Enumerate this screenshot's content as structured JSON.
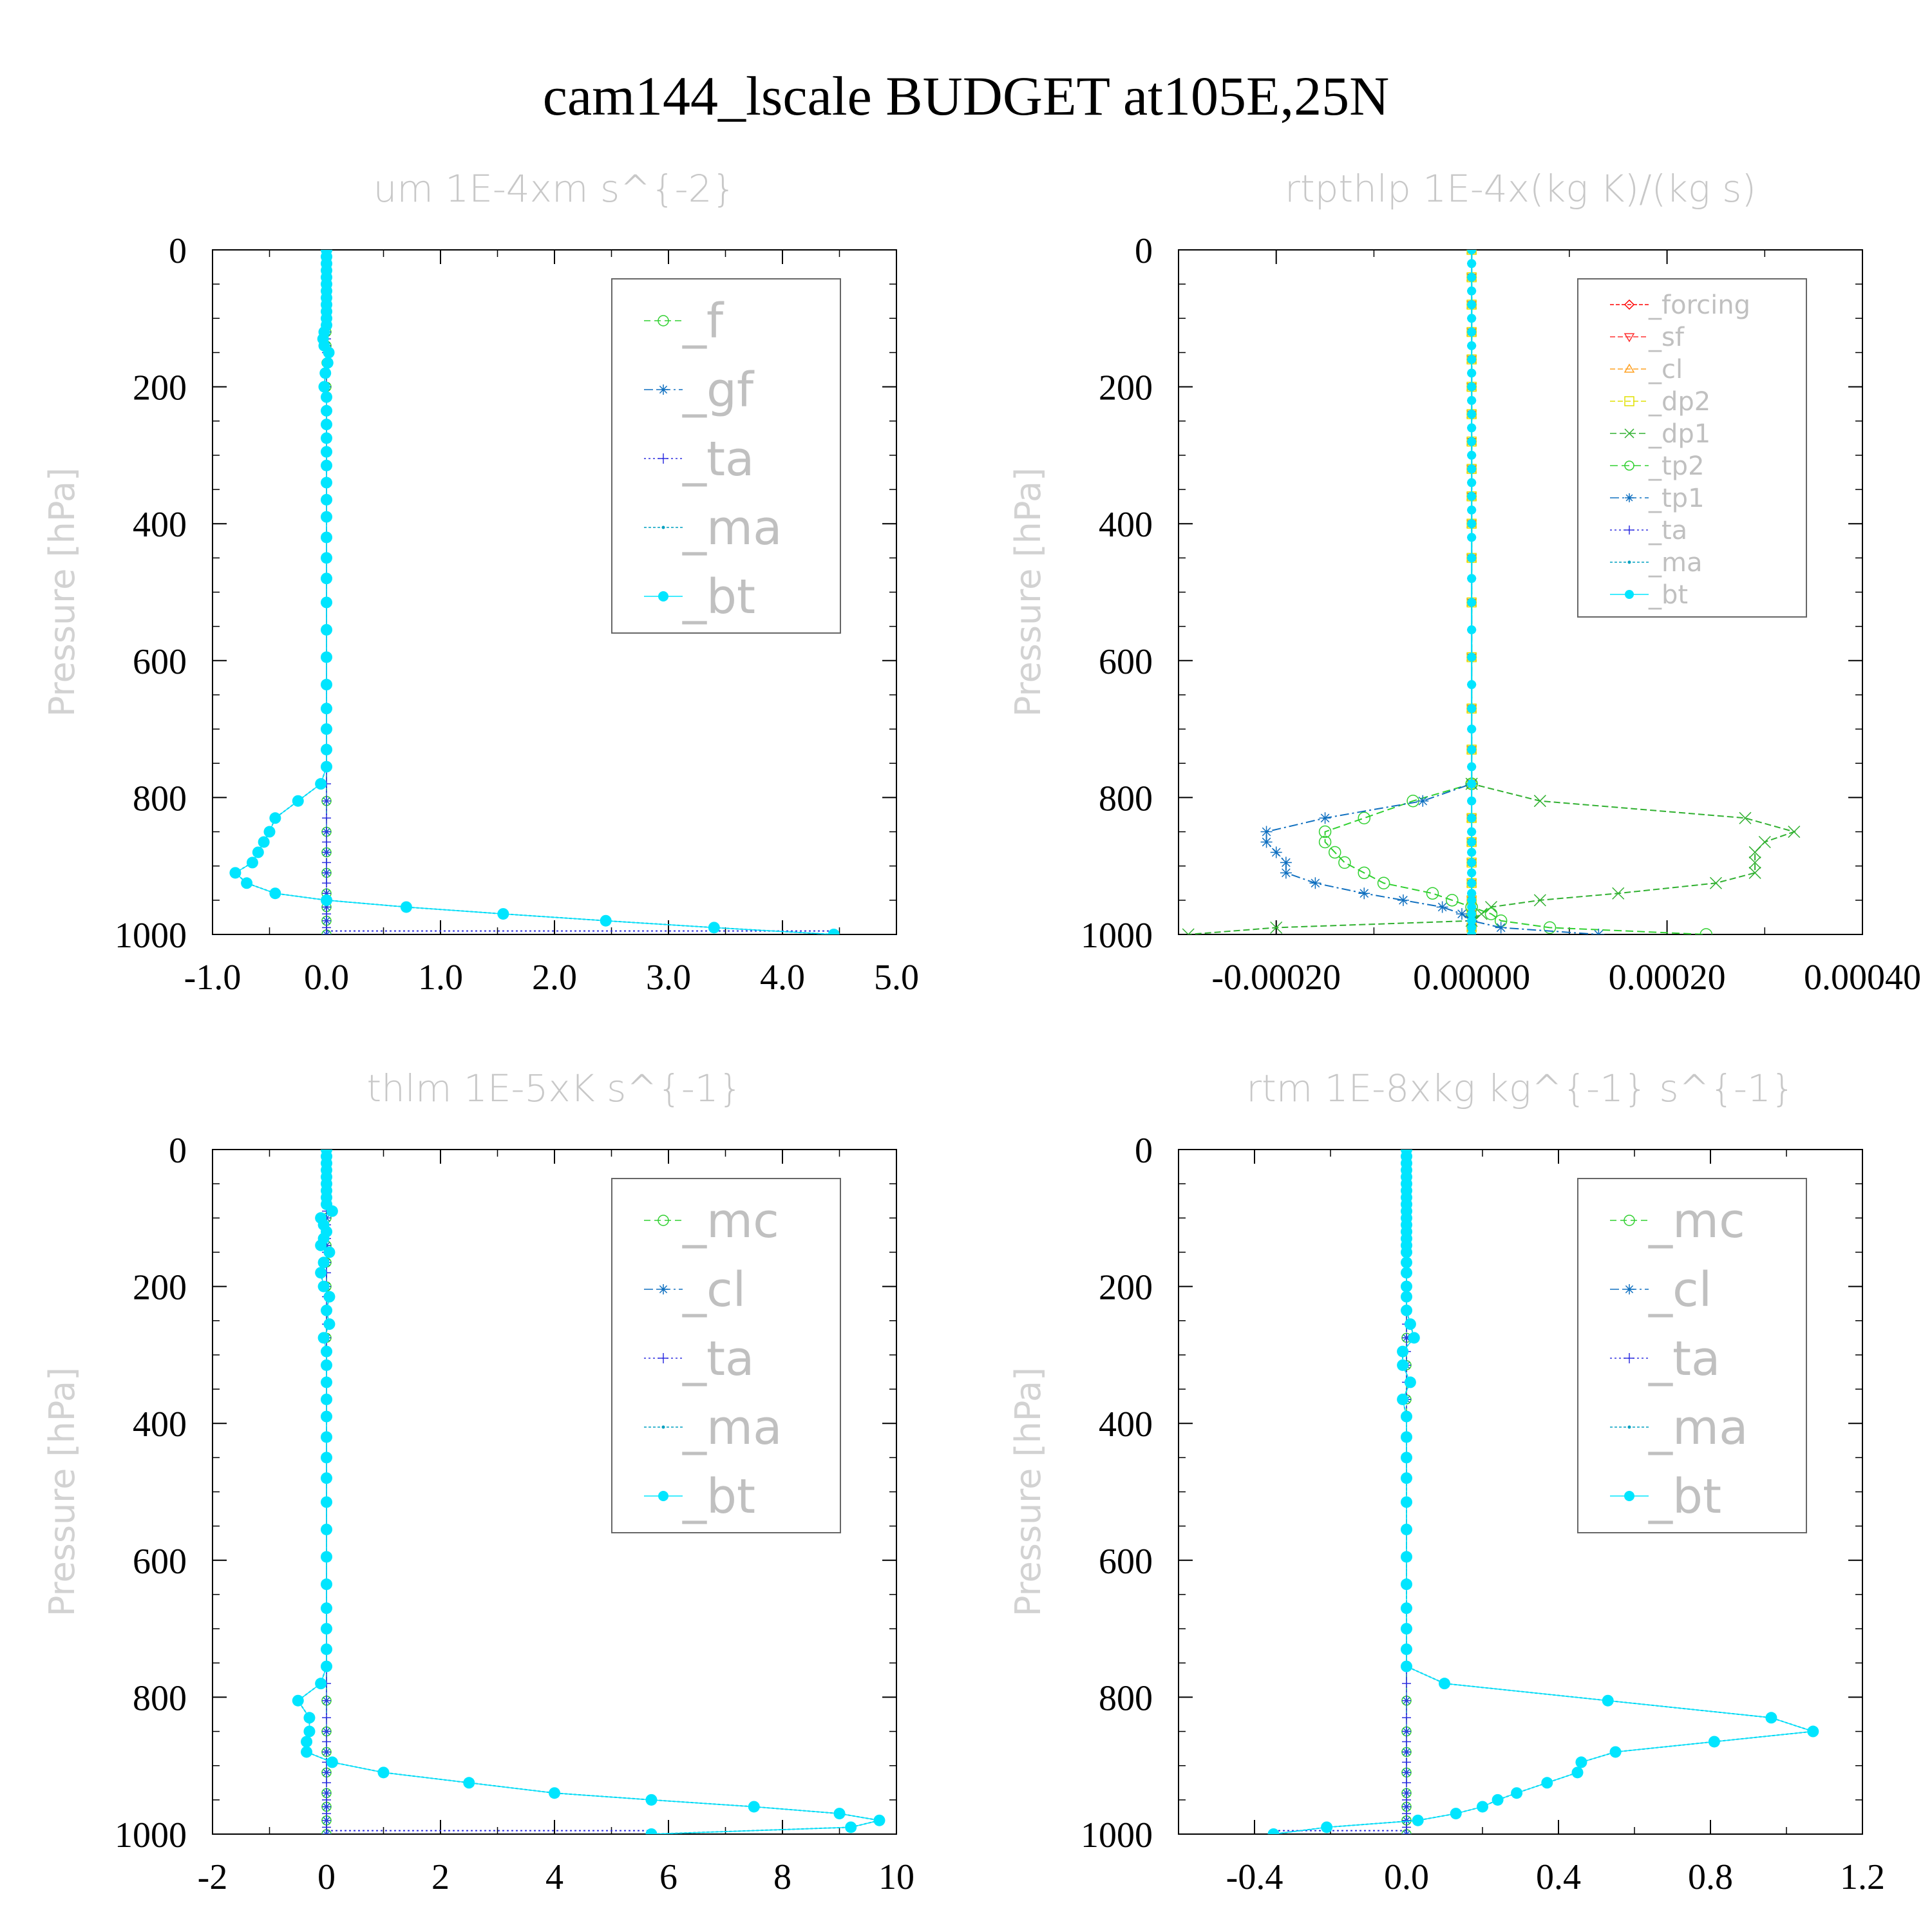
{
  "title": "cam144_lscale  BUDGET at105E,25N",
  "colors": {
    "forcing": "#ff0000",
    "sf": "#ff3030",
    "cl_orange": "#ffa020",
    "dp2": "#e0e000",
    "dp1": "#30b030",
    "f": "#30d030",
    "mc": "#30d030",
    "tp2": "#30d030",
    "gf": "#1070c0",
    "cl": "#1070c0",
    "tp1": "#1070c0",
    "ta": "#3030e0",
    "ma": "#00a0c0",
    "bt": "#00e5ff"
  },
  "chart_data": [
    {
      "type": "line",
      "title": "um   1E-4xm s^{-2}",
      "ylabel": "Pressure [hPa]",
      "xlim": [
        -1.0,
        5.0
      ],
      "ylim": [
        1000,
        0
      ],
      "x_ticks": [
        "-1.0",
        "0.0",
        "1.0",
        "2.0",
        "3.0",
        "4.0",
        "5.0"
      ],
      "x_tick_values": [
        -1,
        0,
        1,
        2,
        3,
        4,
        5
      ],
      "y_ticks": [
        "0",
        "200",
        "400",
        "600",
        "800",
        "1000"
      ],
      "y_tick_values": [
        0,
        200,
        400,
        600,
        800,
        1000
      ],
      "legend_font": 74,
      "legend": [
        "_f",
        "_gf",
        "_ta",
        "_ma",
        "_bt"
      ],
      "series_keys": [
        "f",
        "gf",
        "ta",
        "ma",
        "bt"
      ],
      "pressure": [
        0,
        10,
        20,
        30,
        40,
        50,
        60,
        70,
        80,
        90,
        100,
        110,
        120,
        130,
        140,
        150,
        165,
        180,
        200,
        215,
        235,
        255,
        275,
        295,
        315,
        340,
        365,
        390,
        420,
        450,
        480,
        515,
        555,
        595,
        635,
        670,
        700,
        730,
        755,
        780,
        805,
        830,
        850,
        865,
        880,
        895,
        910,
        925,
        940,
        950,
        960,
        970,
        980,
        990,
        1000
      ],
      "bt": [
        0,
        0,
        0,
        0,
        0,
        0,
        0,
        0,
        0,
        0,
        0,
        0,
        -0.02,
        -0.03,
        -0.02,
        0.02,
        0.01,
        -0.01,
        -0.02,
        0,
        0,
        0,
        0,
        0,
        0,
        0,
        0,
        0,
        0,
        0,
        0,
        0,
        0,
        0,
        0,
        0,
        0,
        0,
        0,
        -0.05,
        -0.25,
        -0.45,
        -0.5,
        -0.55,
        -0.6,
        -0.65,
        -0.8,
        -0.7,
        -0.45,
        0,
        0.7,
        1.55,
        2.45,
        3.4,
        4.45
      ],
      "ma": [
        0,
        0,
        0,
        0,
        0,
        0,
        0,
        0,
        0,
        0,
        0,
        0,
        -0.02,
        -0.03,
        -0.02,
        0.02,
        0.01,
        -0.01,
        -0.02,
        0,
        0,
        0,
        0,
        0,
        0,
        0,
        0,
        0,
        0,
        0,
        0,
        0,
        0,
        0,
        0,
        0,
        0,
        0,
        0,
        -0.05,
        -0.25,
        -0.45,
        -0.5,
        -0.55,
        -0.6,
        -0.65,
        -0.8,
        -0.7,
        -0.45,
        0,
        0.7,
        1.55,
        2.45,
        3.4,
        4.45
      ],
      "ta_bottom": 4.45
    },
    {
      "type": "line",
      "title": "rtpthlp   1E-4x(kg K)/(kg s)",
      "ylabel": "Pressure [hPa]",
      "xlim": [
        -0.0003,
        0.0004
      ],
      "ylim": [
        1000,
        0
      ],
      "x_ticks": [
        "-0.00020",
        "0.00000",
        "0.00020",
        "0.00040"
      ],
      "x_tick_values": [
        -0.0002,
        0,
        0.0002,
        0.0004
      ],
      "y_ticks": [
        "0",
        "200",
        "400",
        "600",
        "800",
        "1000"
      ],
      "y_tick_values": [
        0,
        200,
        400,
        600,
        800,
        1000
      ],
      "legend_font": 40,
      "legend": [
        "_forcing",
        "_sf",
        "_cl",
        "_dp2",
        "_dp1",
        "_tp2",
        "_tp1",
        "_ta",
        "_ma",
        "_bt"
      ],
      "series_keys": [
        "forcing",
        "sf",
        "cl_orange",
        "dp2",
        "dp1",
        "tp2",
        "tp1",
        "ta",
        "ma",
        "bt"
      ],
      "pressure_low": [
        780,
        805,
        830,
        850,
        865,
        880,
        895,
        910,
        925,
        940,
        950,
        960,
        970,
        980,
        990,
        1000
      ],
      "dp1": [
        0,
        7e-05,
        0.00028,
        0.00033,
        0.0003,
        0.00029,
        0.00029,
        0.00029,
        0.00025,
        0.00015,
        7e-05,
        2e-05,
        1e-05,
        0,
        -0.0002,
        -0.00029
      ],
      "tp2": [
        0,
        -6e-05,
        -0.00011,
        -0.00015,
        -0.00015,
        -0.00014,
        -0.00013,
        -0.00011,
        -9e-05,
        -4e-05,
        -2e-05,
        0,
        2e-05,
        3e-05,
        8e-05,
        0.00024
      ],
      "tp1": [
        0,
        -5e-05,
        -0.00015,
        -0.00021,
        -0.00021,
        -0.0002,
        -0.00019,
        -0.00019,
        -0.00016,
        -0.00011,
        -7e-05,
        -3e-05,
        -1e-05,
        0,
        3e-05,
        0.00013
      ]
    },
    {
      "type": "line",
      "title": "thlm   1E-5xK s^{-1}",
      "ylabel": "Pressure [hPa]",
      "xlim": [
        -2,
        10
      ],
      "ylim": [
        1000,
        0
      ],
      "x_ticks": [
        "-2",
        "0",
        "2",
        "4",
        "6",
        "8",
        "10"
      ],
      "x_tick_values": [
        -2,
        0,
        2,
        4,
        6,
        8,
        10
      ],
      "y_ticks": [
        "0",
        "200",
        "400",
        "600",
        "800",
        "1000"
      ],
      "y_tick_values": [
        0,
        200,
        400,
        600,
        800,
        1000
      ],
      "legend_font": 74,
      "legend": [
        "_mc",
        "_cl",
        "_ta",
        "_ma",
        "_bt"
      ],
      "series_keys": [
        "mc",
        "cl",
        "ta",
        "ma",
        "bt"
      ],
      "pressure": [
        0,
        10,
        20,
        30,
        40,
        50,
        60,
        70,
        80,
        90,
        100,
        110,
        120,
        130,
        140,
        150,
        165,
        180,
        200,
        215,
        235,
        255,
        275,
        295,
        315,
        340,
        365,
        390,
        420,
        450,
        480,
        515,
        555,
        595,
        635,
        670,
        700,
        730,
        755,
        780,
        805,
        830,
        850,
        865,
        880,
        895,
        910,
        925,
        940,
        950,
        960,
        970,
        980,
        990,
        1000
      ],
      "bt": [
        0,
        0,
        0,
        0,
        0,
        0,
        0,
        0,
        0,
        0.1,
        -0.1,
        -0.05,
        0,
        -0.05,
        -0.1,
        0.05,
        -0.05,
        -0.1,
        -0.05,
        0.05,
        0,
        0.05,
        -0.05,
        0,
        0,
        0,
        0,
        0,
        0,
        0,
        0,
        0,
        0,
        0,
        0,
        0,
        0,
        0,
        0,
        -0.1,
        -0.5,
        -0.3,
        -0.3,
        -0.35,
        -0.35,
        0.1,
        1.0,
        2.5,
        4.0,
        5.7,
        7.5,
        9.0,
        9.7,
        9.2,
        5.7
      ],
      "ma": [
        0,
        0,
        0,
        0,
        0,
        0,
        0,
        0,
        0,
        0.1,
        -0.1,
        -0.05,
        0,
        -0.05,
        -0.1,
        0.05,
        -0.05,
        -0.1,
        -0.05,
        0.05,
        0,
        0.05,
        -0.05,
        0,
        0,
        0,
        0,
        0,
        0,
        0,
        0,
        0,
        0,
        0,
        0,
        0,
        0,
        0,
        0,
        -0.1,
        -0.5,
        -0.3,
        -0.3,
        -0.35,
        -0.35,
        0.1,
        1.0,
        2.5,
        4.0,
        5.7,
        7.5,
        9.0,
        9.7,
        9.2,
        5.7
      ],
      "ta_bottom": 5.7
    },
    {
      "type": "line",
      "title": "rtm   1E-8xkg kg^{-1} s^{-1}",
      "ylabel": "Pressure [hPa]",
      "xlim": [
        -0.6,
        1.2
      ],
      "ylim": [
        1000,
        0
      ],
      "x_ticks": [
        "-0.4",
        "0.0",
        "0.4",
        "0.8",
        "1.2"
      ],
      "x_tick_values": [
        -0.4,
        0,
        0.4,
        0.8,
        1.2
      ],
      "y_ticks": [
        "0",
        "200",
        "400",
        "600",
        "800",
        "1000"
      ],
      "y_tick_values": [
        0,
        200,
        400,
        600,
        800,
        1000
      ],
      "legend_font": 74,
      "legend": [
        "_mc",
        "_cl",
        "_ta",
        "_ma",
        "_bt"
      ],
      "series_keys": [
        "mc",
        "cl",
        "ta",
        "ma",
        "bt"
      ],
      "pressure": [
        0,
        10,
        20,
        30,
        40,
        50,
        60,
        70,
        80,
        90,
        100,
        110,
        120,
        130,
        140,
        150,
        165,
        180,
        200,
        215,
        235,
        255,
        275,
        295,
        315,
        340,
        365,
        390,
        420,
        450,
        480,
        515,
        555,
        595,
        635,
        670,
        700,
        730,
        755,
        780,
        805,
        830,
        850,
        865,
        880,
        895,
        910,
        925,
        940,
        950,
        960,
        970,
        980,
        990,
        1000
      ],
      "bt": [
        0,
        0,
        0,
        0,
        0,
        0,
        0,
        0,
        0,
        0,
        0,
        0,
        0,
        0,
        0,
        0,
        0,
        0,
        0,
        0,
        0,
        0.01,
        0.02,
        -0.01,
        -0.01,
        0.01,
        -0.01,
        0,
        0,
        0,
        0,
        0,
        0,
        0,
        0,
        0,
        0,
        0,
        0,
        0.1,
        0.53,
        0.96,
        1.07,
        0.81,
        0.55,
        0.46,
        0.45,
        0.37,
        0.29,
        0.24,
        0.2,
        0.13,
        0.03,
        -0.21,
        -0.35
      ],
      "ma": [
        0,
        0,
        0,
        0,
        0,
        0,
        0,
        0,
        0,
        0,
        0,
        0,
        0,
        0,
        0,
        0,
        0,
        0,
        0,
        0,
        0,
        0.01,
        0.02,
        -0.01,
        -0.01,
        0.01,
        -0.01,
        0,
        0,
        0,
        0,
        0,
        0,
        0,
        0,
        0,
        0,
        0,
        0,
        0.1,
        0.53,
        0.96,
        1.07,
        0.81,
        0.55,
        0.46,
        0.45,
        0.37,
        0.29,
        0.24,
        0.2,
        0.13,
        0.03,
        -0.21,
        -0.35
      ],
      "ta_bottom": -0.35
    }
  ]
}
